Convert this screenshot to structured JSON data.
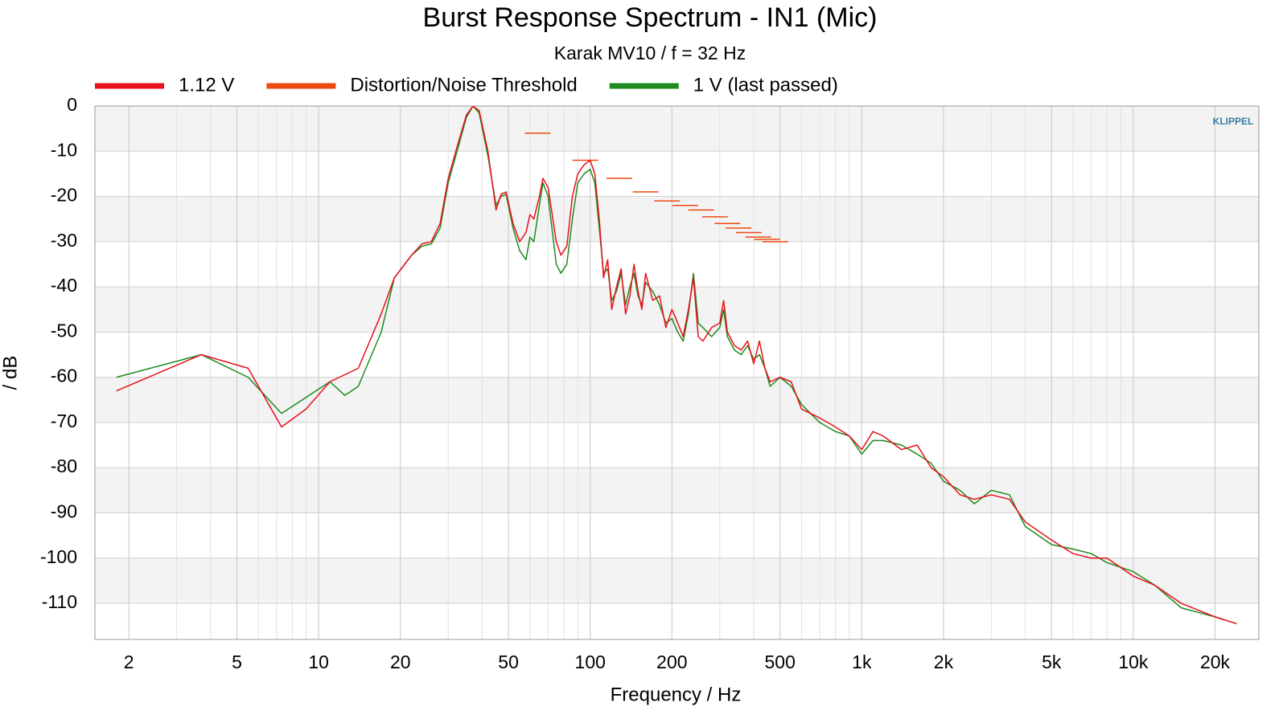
{
  "chart_data": {
    "type": "line",
    "title": "Burst Response Spectrum - IN1 (Mic)",
    "subtitle": "Karak MV10 / f = 32 Hz",
    "x_label": "Frequency / Hz",
    "y_label": "/ dB",
    "logo": "KLIPPEL",
    "x_log": true,
    "grid": true,
    "legend": "top",
    "xlim": [
      1.5,
      29000
    ],
    "ylim": [
      -118,
      0
    ],
    "xticks": [
      2,
      5,
      10,
      20,
      50,
      100,
      200,
      500,
      {
        "value": 1000,
        "label": "1k"
      },
      {
        "value": 2000,
        "label": "2k"
      },
      {
        "value": 5000,
        "label": "5k"
      },
      {
        "value": 10000,
        "label": "10k"
      },
      {
        "value": 20000,
        "label": "20k"
      }
    ],
    "x_minor_ticks": [
      3,
      4,
      6,
      7,
      8,
      9,
      30,
      40,
      60,
      70,
      80,
      90,
      300,
      400,
      600,
      700,
      800,
      900,
      3000,
      4000,
      6000,
      7000,
      8000,
      9000
    ],
    "yticks": [
      0,
      -10,
      -20,
      -30,
      -40,
      -50,
      -60,
      -70,
      -80,
      -90,
      -100,
      -110
    ],
    "series": [
      {
        "name": "1.12 V",
        "color": "#e8101a",
        "x": [
          1.8,
          3.7,
          5.5,
          7.3,
          9,
          11,
          14,
          17,
          19,
          22,
          24,
          26,
          28,
          30,
          32,
          35,
          37,
          39,
          42,
          45,
          47,
          49,
          52,
          55,
          58,
          60,
          62,
          65,
          67,
          70,
          75,
          78,
          82,
          86,
          90,
          95,
          100,
          104,
          108,
          112,
          116,
          120,
          125,
          130,
          135,
          140,
          145,
          150,
          155,
          160,
          170,
          180,
          190,
          200,
          210,
          220,
          230,
          240,
          250,
          260,
          280,
          300,
          310,
          320,
          340,
          360,
          380,
          400,
          420,
          440,
          460,
          500,
          550,
          600,
          700,
          800,
          900,
          1000,
          1100,
          1200,
          1400,
          1600,
          1800,
          2000,
          2300,
          2600,
          3000,
          3500,
          4000,
          5000,
          6000,
          7000,
          8000,
          10000,
          12000,
          15000,
          20000,
          24000
        ],
        "values": [
          -63,
          -55,
          -58,
          -71,
          -67,
          -61,
          -58,
          -46,
          -38,
          -33,
          -30.5,
          -30,
          -26,
          -16,
          -10,
          -2,
          0,
          -1,
          -10,
          -23,
          -19.5,
          -19,
          -26,
          -30,
          -28,
          -24,
          -25,
          -20,
          -16,
          -18,
          -30,
          -33,
          -31,
          -20,
          -15,
          -13,
          -12,
          -15,
          -25,
          -38,
          -34,
          -45,
          -40,
          -36,
          -46,
          -42,
          -35,
          -41,
          -45,
          -37,
          -43,
          -42,
          -49,
          -45,
          -48,
          -51,
          -45,
          -38,
          -51,
          -52,
          -49,
          -48,
          -43,
          -50,
          -53,
          -54,
          -52,
          -57,
          -52,
          -58,
          -61,
          -60,
          -61,
          -67,
          -69,
          -71,
          -73,
          -76,
          -72,
          -73,
          -76,
          -75,
          -80,
          -82,
          -86,
          -87,
          -86,
          -87,
          -92,
          -96,
          -99,
          -100,
          -100,
          -104,
          -106,
          -110,
          -113,
          -114.5
        ]
      },
      {
        "name": "Distortion/Noise Threshold",
        "color": "#ee4a10",
        "marker": "hline",
        "x": [
          64,
          96,
          128,
          160,
          192,
          224,
          256,
          288,
          320,
          352,
          384,
          416,
          448,
          480
        ],
        "values": [
          -6,
          -12,
          -16,
          -19,
          -21,
          -22,
          -23,
          -24.5,
          -26,
          -27,
          -28,
          -29,
          -29.5,
          -30
        ]
      },
      {
        "name": "1 V (last passed)",
        "color": "#1e8a1e",
        "x": [
          1.8,
          3.7,
          5.5,
          7.3,
          11,
          12.5,
          14,
          17,
          19,
          22,
          24,
          26,
          28,
          30,
          32,
          35,
          37,
          39,
          42,
          45,
          47,
          49,
          52,
          55,
          58,
          60,
          62,
          65,
          67,
          70,
          75,
          78,
          82,
          86,
          90,
          95,
          100,
          104,
          108,
          112,
          116,
          120,
          125,
          130,
          135,
          140,
          145,
          150,
          155,
          160,
          170,
          180,
          190,
          200,
          210,
          220,
          230,
          240,
          250,
          260,
          280,
          300,
          310,
          320,
          340,
          360,
          380,
          400,
          420,
          440,
          460,
          500,
          550,
          600,
          700,
          800,
          900,
          1000,
          1100,
          1200,
          1400,
          1600,
          1800,
          2000,
          2300,
          2600,
          3000,
          3500,
          4000,
          5000,
          6000,
          7000,
          8000,
          10000,
          12000,
          15000,
          20000,
          24000
        ],
        "values": [
          -60,
          -55,
          -60,
          -68,
          -61,
          -64,
          -62,
          -50,
          -38,
          -33,
          -31,
          -30.5,
          -27,
          -17,
          -11,
          -2.5,
          0,
          -1.5,
          -11,
          -22,
          -20,
          -19.5,
          -27,
          -32,
          -34,
          -29,
          -30,
          -22,
          -17,
          -20,
          -35,
          -37,
          -35,
          -25,
          -17,
          -15,
          -14,
          -17,
          -27,
          -37,
          -36,
          -43,
          -41,
          -37,
          -44,
          -40,
          -37,
          -42,
          -44,
          -39,
          -41,
          -44,
          -48,
          -47,
          -50,
          -52,
          -46,
          -37,
          -48,
          -49,
          -51,
          -49,
          -45,
          -51,
          -54,
          -55,
          -53,
          -56,
          -55,
          -58,
          -62,
          -60,
          -62,
          -66,
          -70,
          -72,
          -73,
          -77,
          -74,
          -74,
          -75,
          -77,
          -79,
          -83,
          -85,
          -88,
          -85,
          -86,
          -93,
          -97,
          -98,
          -99,
          -101,
          -103,
          -106,
          -111,
          -113,
          -114.5
        ]
      }
    ]
  }
}
